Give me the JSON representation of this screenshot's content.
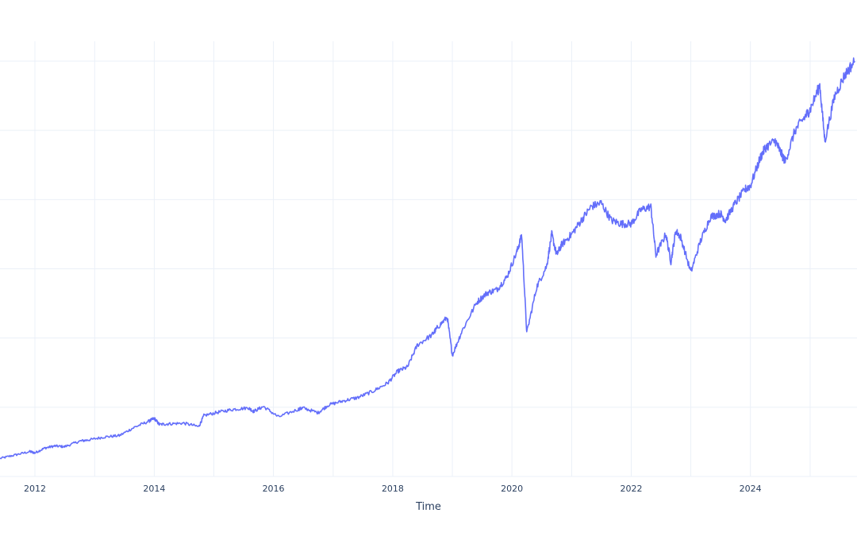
{
  "chart_data": {
    "type": "line",
    "title": "",
    "xlabel": "Time",
    "ylabel": "",
    "grid": true,
    "legend": "none",
    "x_ticks": [
      "2012",
      "2014",
      "2016",
      "2018",
      "2020",
      "2022",
      "2024"
    ],
    "xlim": [
      "2011-06-01",
      "2025-10-15"
    ],
    "ylim": [
      0,
      6
    ],
    "line_color": "#636efa",
    "grid_color": "#ebf0f8",
    "axis_text_color": "#2a3f5f",
    "series": [
      {
        "x": [
          "2011-06",
          "2011-09",
          "2011-12",
          "2012-01",
          "2012-03",
          "2012-05",
          "2012-07",
          "2012-10",
          "2012-12",
          "2013-03",
          "2013-06",
          "2013-09",
          "2013-12",
          "2014-01",
          "2014-02",
          "2014-04",
          "2014-07",
          "2014-10",
          "2014-11",
          "2015-02",
          "2015-05",
          "2015-08",
          "2015-09",
          "2015-11",
          "2016-02",
          "2016-06",
          "2016-07",
          "2016-10",
          "2016-12",
          "2017-03",
          "2017-06",
          "2017-09",
          "2017-12",
          "2018-02",
          "2018-04",
          "2018-06",
          "2018-09",
          "2018-10",
          "2018-12",
          "2019-01",
          "2019-03",
          "2019-06",
          "2019-08",
          "2019-10",
          "2019-12",
          "2020-02",
          "2020-03",
          "2020-04",
          "2020-06",
          "2020-08",
          "2020-09",
          "2020-10",
          "2020-11",
          "2021-01",
          "2021-03",
          "2021-05",
          "2021-07",
          "2021-09",
          "2021-11",
          "2022-01",
          "2022-03",
          "2022-05",
          "2022-06",
          "2022-08",
          "2022-09",
          "2022-10",
          "2022-11",
          "2023-01",
          "2023-03",
          "2023-05",
          "2023-07",
          "2023-08",
          "2023-10",
          "2023-12",
          "2024-01",
          "2024-03",
          "2024-04",
          "2024-06",
          "2024-07",
          "2024-08",
          "2024-10",
          "2024-12",
          "2025-01",
          "2025-03",
          "2025-04",
          "2025-06",
          "2025-08",
          "2025-10"
        ],
        "y": [
          0.26,
          0.31,
          0.36,
          0.34,
          0.41,
          0.44,
          0.43,
          0.51,
          0.53,
          0.57,
          0.59,
          0.71,
          0.8,
          0.84,
          0.75,
          0.76,
          0.77,
          0.72,
          0.88,
          0.93,
          0.97,
          0.99,
          0.94,
          1.01,
          0.86,
          0.97,
          0.99,
          0.92,
          1.03,
          1.09,
          1.14,
          1.23,
          1.35,
          1.52,
          1.58,
          1.9,
          2.05,
          2.15,
          2.3,
          1.75,
          2.1,
          2.52,
          2.65,
          2.7,
          2.88,
          3.25,
          3.48,
          2.07,
          2.74,
          3.04,
          3.5,
          3.2,
          3.35,
          3.5,
          3.7,
          3.9,
          3.95,
          3.7,
          3.65,
          3.65,
          3.85,
          3.9,
          3.2,
          3.5,
          3.1,
          3.55,
          3.45,
          2.95,
          3.4,
          3.75,
          3.8,
          3.7,
          3.95,
          4.15,
          4.2,
          4.6,
          4.75,
          4.85,
          4.7,
          4.55,
          5.0,
          5.2,
          5.3,
          5.65,
          4.85,
          5.5,
          5.8,
          6.0
        ]
      }
    ]
  }
}
